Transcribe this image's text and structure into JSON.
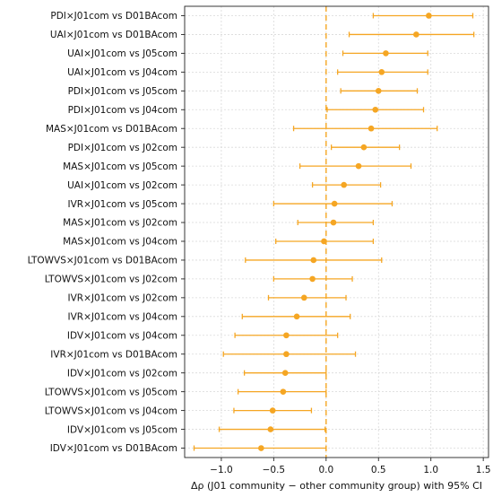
{
  "chart_data": {
    "type": "forest",
    "xlabel": "Δρ (J01 community − other community group) with 95% CI",
    "xlim": [
      -1.35,
      1.55
    ],
    "xticks": [
      -1.0,
      -0.5,
      0.0,
      0.5,
      1.0,
      1.5
    ],
    "xtick_labels": [
      "−1.0",
      "−0.5",
      "0.0",
      "0.5",
      "1.0",
      "1.5"
    ],
    "grid": true,
    "reference_line": 0,
    "colors": {
      "marker": "#f5a623",
      "ci": "#f5a623",
      "reference": "#f5a623",
      "grid": "#d9d9d9"
    },
    "rows": [
      {
        "label": "PDI×J01com vs D01BAcom",
        "est": 0.98,
        "lo": 0.45,
        "hi": 1.4
      },
      {
        "label": "UAI×J01com vs D01BAcom",
        "est": 0.86,
        "lo": 0.22,
        "hi": 1.41
      },
      {
        "label": "UAI×J01com vs J05com",
        "est": 0.57,
        "lo": 0.16,
        "hi": 0.97
      },
      {
        "label": "UAI×J01com vs J04com",
        "est": 0.53,
        "lo": 0.11,
        "hi": 0.97
      },
      {
        "label": "PDI×J01com vs J05com",
        "est": 0.5,
        "lo": 0.14,
        "hi": 0.87
      },
      {
        "label": "PDI×J01com vs J04com",
        "est": 0.47,
        "lo": 0.01,
        "hi": 0.93
      },
      {
        "label": "MAS×J01com vs D01BAcom",
        "est": 0.43,
        "lo": -0.31,
        "hi": 1.06
      },
      {
        "label": "PDI×J01com vs J02com",
        "est": 0.36,
        "lo": 0.05,
        "hi": 0.7
      },
      {
        "label": "MAS×J01com vs J05com",
        "est": 0.31,
        "lo": -0.25,
        "hi": 0.81
      },
      {
        "label": "UAI×J01com vs J02com",
        "est": 0.17,
        "lo": -0.13,
        "hi": 0.52
      },
      {
        "label": "IVR×J01com vs J05com",
        "est": 0.08,
        "lo": -0.5,
        "hi": 0.63
      },
      {
        "label": "MAS×J01com vs J02com",
        "est": 0.07,
        "lo": -0.27,
        "hi": 0.45
      },
      {
        "label": "MAS×J01com vs J04com",
        "est": -0.02,
        "lo": -0.48,
        "hi": 0.45
      },
      {
        "label": "LTOWVS×J01com vs D01BAcom",
        "est": -0.12,
        "lo": -0.77,
        "hi": 0.53
      },
      {
        "label": "LTOWVS×J01com vs J02com",
        "est": -0.13,
        "lo": -0.5,
        "hi": 0.25
      },
      {
        "label": "IVR×J01com vs J02com",
        "est": -0.21,
        "lo": -0.55,
        "hi": 0.19
      },
      {
        "label": "IVR×J01com vs J04com",
        "est": -0.28,
        "lo": -0.8,
        "hi": 0.23
      },
      {
        "label": "IDV×J01com vs J04com",
        "est": -0.38,
        "lo": -0.87,
        "hi": 0.11
      },
      {
        "label": "IVR×J01com vs D01BAcom",
        "est": -0.38,
        "lo": -0.98,
        "hi": 0.28
      },
      {
        "label": "IDV×J01com vs J02com",
        "est": -0.39,
        "lo": -0.78,
        "hi": 0.0
      },
      {
        "label": "LTOWVS×J01com vs J05com",
        "est": -0.41,
        "lo": -0.84,
        "hi": 0.0
      },
      {
        "label": "LTOWVS×J01com vs J04com",
        "est": -0.51,
        "lo": -0.88,
        "hi": -0.14
      },
      {
        "label": "IDV×J01com vs J05com",
        "est": -0.53,
        "lo": -1.02,
        "hi": -0.01
      },
      {
        "label": "IDV×J01com vs D01BAcom",
        "est": -0.62,
        "lo": -1.26,
        "hi": 0.0
      }
    ]
  }
}
